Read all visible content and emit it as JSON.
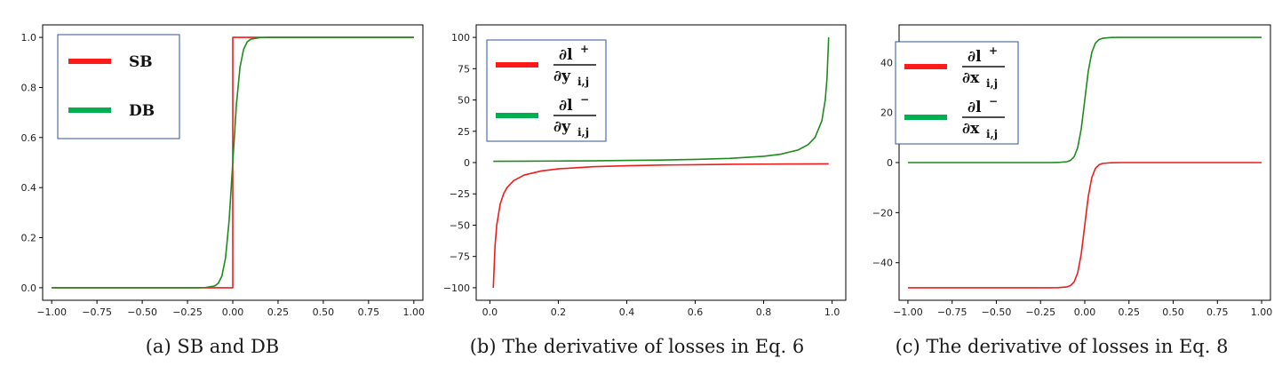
{
  "colors": {
    "red": "#ee1c1c",
    "green": "#1f8a1f",
    "legend_red": "#ff1a1a",
    "legend_green": "#00b050",
    "legend_border": "#2f5597"
  },
  "chart_data": [
    {
      "id": "a",
      "type": "line",
      "caption": "(a) SB and DB",
      "xlim": [
        -1.05,
        1.05
      ],
      "ylim": [
        -0.05,
        1.05
      ],
      "xticks": [
        -1.0,
        -0.75,
        -0.5,
        -0.25,
        0.0,
        0.25,
        0.5,
        0.75,
        1.0
      ],
      "xtick_labels": [
        "−1.00",
        "−0.75",
        "−0.50",
        "−0.25",
        "0.00",
        "0.25",
        "0.50",
        "0.75",
        "1.00"
      ],
      "yticks": [
        0.0,
        0.2,
        0.4,
        0.6,
        0.8,
        1.0
      ],
      "ytick_labels": [
        "0.0",
        "0.2",
        "0.4",
        "0.6",
        "0.8",
        "1.0"
      ],
      "grid": false,
      "legend_position": "top-left",
      "legend": [
        {
          "label": "SB",
          "color": "#ff1a1a"
        },
        {
          "label": "DB",
          "color": "#00b050"
        }
      ],
      "series": [
        {
          "name": "SB",
          "color": "#ee1c1c",
          "x": [
            -1.0,
            0.0,
            0.0,
            1.0
          ],
          "y": [
            0.0,
            0.0,
            1.0,
            1.0
          ]
        },
        {
          "name": "DB",
          "color": "#1f8a1f",
          "x": [
            -1.0,
            -0.2,
            -0.15,
            -0.1,
            -0.08,
            -0.06,
            -0.04,
            -0.02,
            0.0,
            0.02,
            0.04,
            0.06,
            0.08,
            0.1,
            0.15,
            0.2,
            1.0
          ],
          "y": [
            0.0,
            0.0,
            0.001,
            0.007,
            0.018,
            0.047,
            0.119,
            0.269,
            0.5,
            0.731,
            0.881,
            0.953,
            0.982,
            0.993,
            0.999,
            1.0,
            1.0
          ]
        }
      ]
    },
    {
      "id": "b",
      "type": "line",
      "caption": "(b) The derivative of losses in Eq. 6",
      "xlim": [
        -0.04,
        1.04
      ],
      "ylim": [
        -110,
        110
      ],
      "xticks": [
        0.0,
        0.2,
        0.4,
        0.6,
        0.8,
        1.0
      ],
      "xtick_labels": [
        "0.0",
        "0.2",
        "0.4",
        "0.6",
        "0.8",
        "1.0"
      ],
      "yticks": [
        -100,
        -75,
        -50,
        -25,
        0,
        25,
        50,
        75,
        100
      ],
      "ytick_labels": [
        "−100",
        "−75",
        "−50",
        "−25",
        "0",
        "25",
        "50",
        "75",
        "100"
      ],
      "grid": false,
      "legend_position": "top-left",
      "legend": [
        {
          "numerator": "∂l",
          "numerator_sup": "+",
          "denominator": "∂y",
          "denominator_sub": "i,j",
          "color": "#ff1a1a"
        },
        {
          "numerator": "∂l",
          "numerator_sup": "−",
          "denominator": "∂y",
          "denominator_sub": "i,j",
          "color": "#00b050"
        }
      ],
      "series": [
        {
          "name": "∂l+/∂y",
          "color": "#ee1c1c",
          "x": [
            0.01,
            0.015,
            0.02,
            0.03,
            0.04,
            0.05,
            0.07,
            0.1,
            0.15,
            0.2,
            0.3,
            0.4,
            0.5,
            0.6,
            0.7,
            0.8,
            0.9,
            0.99
          ],
          "y": [
            -100,
            -66.7,
            -50,
            -33.3,
            -25,
            -20,
            -14.3,
            -10,
            -6.7,
            -5,
            -3.3,
            -2.5,
            -2,
            -1.7,
            -1.4,
            -1.25,
            -1.1,
            -1.0
          ]
        },
        {
          "name": "∂l−/∂y",
          "color": "#1f8a1f",
          "x": [
            0.01,
            0.1,
            0.2,
            0.3,
            0.4,
            0.5,
            0.6,
            0.7,
            0.8,
            0.85,
            0.9,
            0.93,
            0.95,
            0.97,
            0.98,
            0.985,
            0.99
          ],
          "y": [
            1.0,
            1.1,
            1.25,
            1.4,
            1.7,
            2,
            2.5,
            3.3,
            5,
            6.7,
            10,
            14.3,
            20,
            33.3,
            50,
            66.7,
            100
          ]
        }
      ]
    },
    {
      "id": "c",
      "type": "line",
      "caption": "(c) The derivative of losses in Eq. 8",
      "xlim": [
        -1.05,
        1.05
      ],
      "ylim": [
        -55,
        55
      ],
      "xticks": [
        -1.0,
        -0.75,
        -0.5,
        -0.25,
        0.0,
        0.25,
        0.5,
        0.75,
        1.0
      ],
      "xtick_labels": [
        "−1.00",
        "−0.75",
        "−0.50",
        "−0.25",
        "0.00",
        "0.25",
        "0.50",
        "0.75",
        "1.00"
      ],
      "yticks": [
        -40,
        -20,
        0,
        20,
        40
      ],
      "ytick_labels": [
        "−40",
        "−20",
        "0",
        "20",
        "40"
      ],
      "grid": false,
      "legend_position": "top-left",
      "legend": [
        {
          "numerator": "∂l",
          "numerator_sup": "+",
          "denominator": "∂x",
          "denominator_sub": "i,j",
          "color": "#ff1a1a"
        },
        {
          "numerator": "∂l",
          "numerator_sup": "−",
          "denominator": "∂x",
          "denominator_sub": "i,j",
          "color": "#00b050"
        }
      ],
      "series": [
        {
          "name": "∂l+/∂x",
          "color": "#ee1c1c",
          "x": [
            -1.0,
            -0.2,
            -0.15,
            -0.1,
            -0.08,
            -0.06,
            -0.04,
            -0.02,
            0.0,
            0.02,
            0.04,
            0.06,
            0.08,
            0.1,
            0.15,
            0.2,
            1.0
          ],
          "y": [
            -50,
            -50,
            -49.95,
            -49.65,
            -49.1,
            -47.65,
            -44.05,
            -36.55,
            -25,
            -13.45,
            -5.95,
            -2.35,
            -0.9,
            -0.35,
            -0.05,
            0,
            0
          ]
        },
        {
          "name": "∂l−/∂x",
          "color": "#1f8a1f",
          "x": [
            -1.0,
            -0.2,
            -0.15,
            -0.1,
            -0.08,
            -0.06,
            -0.04,
            -0.02,
            0.0,
            0.02,
            0.04,
            0.06,
            0.08,
            0.1,
            0.15,
            0.2,
            1.0
          ],
          "y": [
            0,
            0,
            0.05,
            0.35,
            0.9,
            2.35,
            5.95,
            13.45,
            25,
            36.55,
            44.05,
            47.65,
            49.1,
            49.65,
            49.95,
            50,
            50
          ]
        }
      ]
    }
  ]
}
